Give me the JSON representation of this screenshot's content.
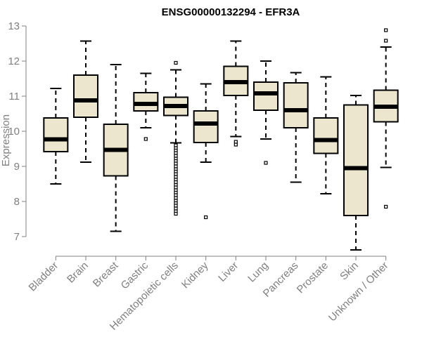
{
  "chart_data": {
    "type": "box",
    "title": "ENSG00000132294 - EFR3A",
    "xlabel": "",
    "ylabel": "Expression",
    "ylim": [
      6.4,
      13.1
    ],
    "yticks": [
      7,
      8,
      9,
      10,
      11,
      12,
      13
    ],
    "grid": false,
    "box_fill": "#ede6cf",
    "categories": [
      "Bladder",
      "Brain",
      "Breast",
      "Gastric",
      "Hematopoietic cells",
      "Kidney",
      "Liver",
      "Lung",
      "Pancreas",
      "Prostate",
      "Skin",
      "Unknown / Other"
    ],
    "boxes": [
      {
        "category": "Bladder",
        "whisker_low": 8.5,
        "q1": 9.42,
        "median": 9.77,
        "q3": 10.38,
        "whisker_high": 11.22,
        "outliers": []
      },
      {
        "category": "Brain",
        "whisker_low": 9.12,
        "q1": 10.4,
        "median": 10.88,
        "q3": 11.6,
        "whisker_high": 12.57,
        "outliers": []
      },
      {
        "category": "Breast",
        "whisker_low": 7.15,
        "q1": 8.73,
        "median": 9.47,
        "q3": 10.2,
        "whisker_high": 11.9,
        "outliers": []
      },
      {
        "category": "Gastric",
        "whisker_low": 10.1,
        "q1": 10.58,
        "median": 10.78,
        "q3": 11.1,
        "whisker_high": 11.65,
        "outliers": [
          9.78
        ]
      },
      {
        "category": "Hematopoietic cells",
        "whisker_low": 9.67,
        "q1": 10.45,
        "median": 10.72,
        "q3": 10.97,
        "whisker_high": 11.75,
        "outliers": [
          11.95,
          9.6,
          9.52,
          9.45,
          9.38,
          9.3,
          9.22,
          9.15,
          9.08,
          9.0,
          8.92,
          8.85,
          8.78,
          8.7,
          8.62,
          8.55,
          8.47,
          8.4,
          8.32,
          8.25,
          8.18,
          8.1,
          8.02,
          7.95,
          7.88,
          7.8,
          7.72,
          7.65
        ]
      },
      {
        "category": "Kidney",
        "whisker_low": 9.12,
        "q1": 9.68,
        "median": 10.22,
        "q3": 10.58,
        "whisker_high": 11.35,
        "outliers": [
          7.55
        ]
      },
      {
        "category": "Liver",
        "whisker_low": 9.85,
        "q1": 11.02,
        "median": 11.4,
        "q3": 11.85,
        "whisker_high": 12.57,
        "outliers": [
          9.7,
          9.62
        ]
      },
      {
        "category": "Lung",
        "whisker_low": 9.78,
        "q1": 10.6,
        "median": 11.08,
        "q3": 11.4,
        "whisker_high": 12.0,
        "outliers": [
          9.1
        ]
      },
      {
        "category": "Pancreas",
        "whisker_low": 8.55,
        "q1": 10.1,
        "median": 10.6,
        "q3": 11.38,
        "whisker_high": 11.67,
        "outliers": []
      },
      {
        "category": "Prostate",
        "whisker_low": 8.22,
        "q1": 9.37,
        "median": 9.75,
        "q3": 10.38,
        "whisker_high": 11.55,
        "outliers": []
      },
      {
        "category": "Skin",
        "whisker_low": 6.62,
        "q1": 7.6,
        "median": 8.95,
        "q3": 10.75,
        "whisker_high": 11.02,
        "outliers": []
      },
      {
        "category": "Unknown / Other",
        "whisker_low": 8.97,
        "q1": 10.27,
        "median": 10.7,
        "q3": 11.17,
        "whisker_high": 12.4,
        "outliers": [
          12.88,
          12.58,
          7.85
        ]
      }
    ]
  }
}
